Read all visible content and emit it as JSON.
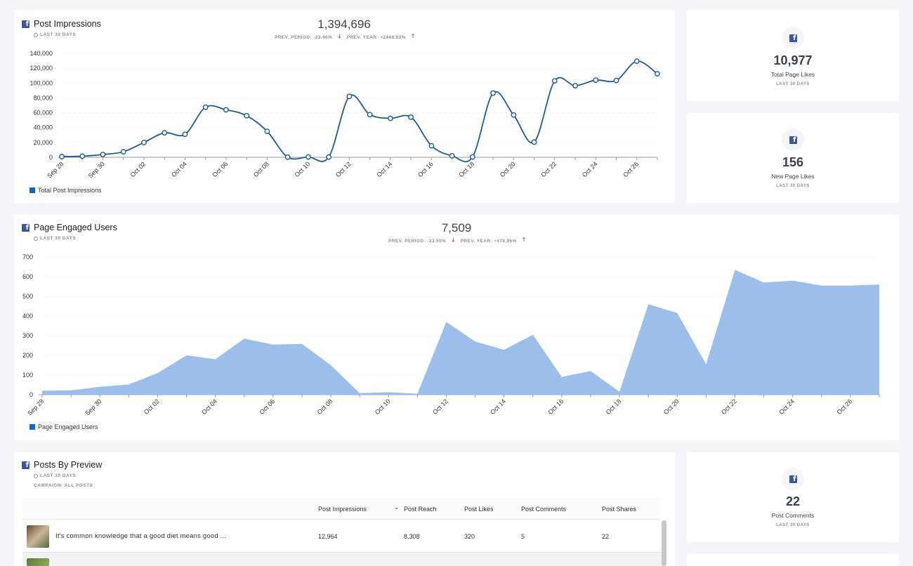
{
  "impressions": {
    "title": "Post Impressions",
    "period": "LAST 30 DAYS",
    "total": "1,394,696",
    "prev_period": "PREV. PERIOD: -23.46%",
    "prev_year": "PREV. YEAR: +2448.83%",
    "legend": "Total Post Impressions"
  },
  "engaged": {
    "title": "Page Engaged Users",
    "period": "LAST 30 DAYS",
    "total": "7,509",
    "prev_period": "PREV. PERIOD: -33.55%",
    "prev_year": "PREV. YEAR: +478.95%",
    "legend": "Page Engaged Users"
  },
  "stats": [
    {
      "value": "10,977",
      "label": "Total Page Likes",
      "period": "LAST 30 DAYS"
    },
    {
      "value": "156",
      "label": "New Page Likes",
      "period": "LAST 30 DAYS"
    },
    {
      "value": "22",
      "label": "Post Comments",
      "period": "LAST 30 DAYS"
    }
  ],
  "posts": {
    "title": "Posts By Preview",
    "period": "LAST 30 DAYS",
    "campaign": "CAMPAIGN: ALL POSTS",
    "columns": [
      "Post Impressions",
      "Post Reach",
      "Post Likes",
      "Post Comments",
      "Post Shares"
    ],
    "rows": [
      {
        "text": "It's common knowledge that a good diet means good ...",
        "impressions": "12,964",
        "reach": "8,308",
        "likes": "320",
        "comments": "5",
        "shares": "22"
      }
    ]
  },
  "chart_data": [
    {
      "type": "line",
      "title": "",
      "series": [
        {
          "name": "Total Post Impressions",
          "values": [
            1000,
            1500,
            3800,
            7500,
            20000,
            33000,
            31000,
            67500,
            64000,
            56000,
            35000,
            200,
            500,
            400,
            82000,
            57500,
            52500,
            54000,
            15500,
            2000,
            500,
            86500,
            57000,
            20500,
            103000,
            96500,
            104000,
            103500,
            129500,
            112500
          ]
        }
      ],
      "x": [
        "Sep 28",
        "Sep 29",
        "Sep 30",
        "Oct 01",
        "Oct 02",
        "Oct 03",
        "Oct 04",
        "Oct 05",
        "Oct 06",
        "Oct 07",
        "Oct 08",
        "Oct 09",
        "Oct 10",
        "Oct 11",
        "Oct 12",
        "Oct 13",
        "Oct 14",
        "Oct 15",
        "Oct 16",
        "Oct 17",
        "Oct 18",
        "Oct 19",
        "Oct 20",
        "Oct 21",
        "Oct 22",
        "Oct 23",
        "Oct 24",
        "Oct 25",
        "Oct 26",
        "Oct 27"
      ],
      "tick_labels": [
        "Sep 28",
        "Sep 30",
        "Oct 02",
        "Oct 04",
        "Oct 06",
        "Oct 08",
        "Oct 10",
        "Oct 12",
        "Oct 14",
        "Oct 16",
        "Oct 18",
        "Oct 20",
        "Oct 22",
        "Oct 24",
        "Oct 26"
      ],
      "y_ticks": [
        "0",
        "20,000",
        "40,000",
        "60,000",
        "80,000",
        "100,000",
        "120,000",
        "140,000"
      ],
      "ylim": [
        0,
        140000
      ],
      "grid": true,
      "legend": "bottom-left"
    },
    {
      "type": "area",
      "title": "",
      "series": [
        {
          "name": "Page Engaged Users",
          "values": [
            20,
            22,
            40,
            52,
            110,
            200,
            180,
            285,
            255,
            258,
            150,
            8,
            12,
            5,
            370,
            270,
            228,
            305,
            90,
            120,
            15,
            460,
            415,
            155,
            635,
            570,
            580,
            555,
            555,
            560
          ]
        }
      ],
      "x": [
        "Sep 28",
        "Sep 29",
        "Sep 30",
        "Oct 01",
        "Oct 02",
        "Oct 03",
        "Oct 04",
        "Oct 05",
        "Oct 06",
        "Oct 07",
        "Oct 08",
        "Oct 09",
        "Oct 10",
        "Oct 11",
        "Oct 12",
        "Oct 13",
        "Oct 14",
        "Oct 15",
        "Oct 16",
        "Oct 17",
        "Oct 18",
        "Oct 19",
        "Oct 20",
        "Oct 21",
        "Oct 22",
        "Oct 23",
        "Oct 24",
        "Oct 25",
        "Oct 26",
        "Oct 27"
      ],
      "tick_labels": [
        "Sep 28",
        "Sep 30",
        "Oct 02",
        "Oct 04",
        "Oct 06",
        "Oct 08",
        "Oct 10",
        "Oct 12",
        "Oct 14",
        "Oct 16",
        "Oct 18",
        "Oct 20",
        "Oct 22",
        "Oct 24",
        "Oct 26"
      ],
      "y_ticks": [
        "0",
        "100",
        "200",
        "300",
        "400",
        "500",
        "600",
        "700"
      ],
      "ylim": [
        0,
        700
      ],
      "grid": true,
      "legend": "bottom-left"
    }
  ],
  "colors": {
    "line": "#1f5b93",
    "area": "#9bbfea",
    "legend": "#1565c0",
    "facebook": "#3b5998"
  },
  "icons": {
    "brand": "facebook-icon",
    "period": "globe-icon",
    "sort": "chevron-down-icon"
  }
}
